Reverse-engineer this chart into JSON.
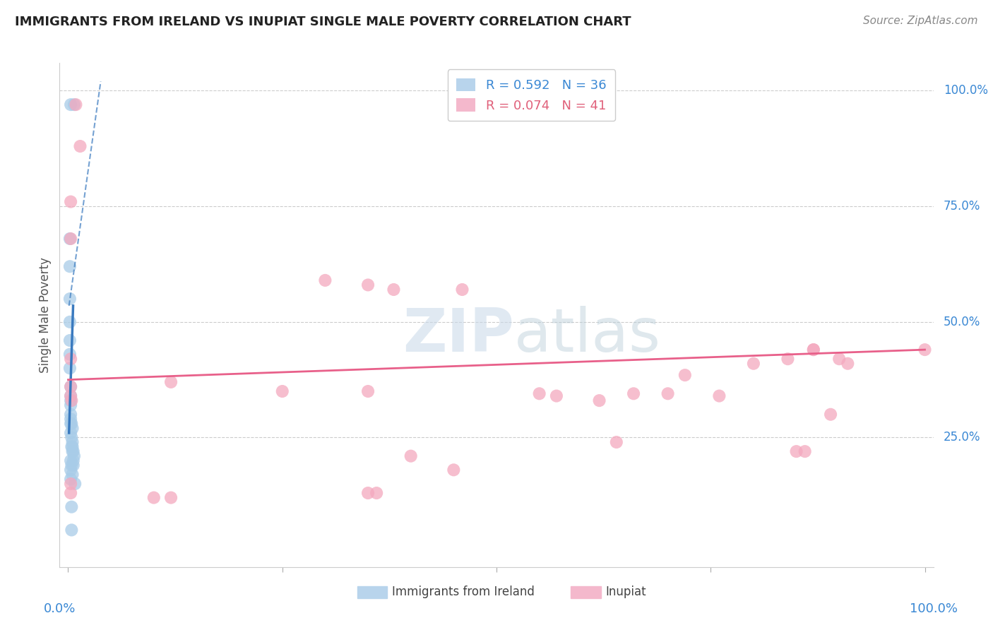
{
  "title": "IMMIGRANTS FROM IRELAND VS INUPIAT SINGLE MALE POVERTY CORRELATION CHART",
  "source": "Source: ZipAtlas.com",
  "ylabel": "Single Male Poverty",
  "blue_color": "#a8cce8",
  "pink_color": "#f4a8be",
  "blue_line_color": "#3a7abf",
  "pink_line_color": "#e8608a",
  "blue_points": [
    [
      0.003,
      0.97
    ],
    [
      0.007,
      0.97
    ],
    [
      0.002,
      0.68
    ],
    [
      0.002,
      0.62
    ],
    [
      0.002,
      0.55
    ],
    [
      0.002,
      0.5
    ],
    [
      0.002,
      0.46
    ],
    [
      0.002,
      0.43
    ],
    [
      0.002,
      0.4
    ],
    [
      0.003,
      0.36
    ],
    [
      0.003,
      0.34
    ],
    [
      0.003,
      0.33
    ],
    [
      0.003,
      0.32
    ],
    [
      0.003,
      0.3
    ],
    [
      0.003,
      0.29
    ],
    [
      0.003,
      0.28
    ],
    [
      0.004,
      0.28
    ],
    [
      0.005,
      0.27
    ],
    [
      0.003,
      0.26
    ],
    [
      0.004,
      0.25
    ],
    [
      0.005,
      0.24
    ],
    [
      0.004,
      0.23
    ],
    [
      0.005,
      0.23
    ],
    [
      0.005,
      0.22
    ],
    [
      0.006,
      0.22
    ],
    [
      0.007,
      0.21
    ],
    [
      0.003,
      0.2
    ],
    [
      0.006,
      0.2
    ],
    [
      0.004,
      0.19
    ],
    [
      0.006,
      0.19
    ],
    [
      0.003,
      0.18
    ],
    [
      0.005,
      0.17
    ],
    [
      0.003,
      0.16
    ],
    [
      0.008,
      0.15
    ],
    [
      0.004,
      0.1
    ],
    [
      0.004,
      0.05
    ]
  ],
  "pink_points": [
    [
      0.009,
      0.97
    ],
    [
      0.014,
      0.88
    ],
    [
      0.003,
      0.76
    ],
    [
      0.003,
      0.68
    ],
    [
      0.3,
      0.59
    ],
    [
      0.35,
      0.58
    ],
    [
      0.38,
      0.57
    ],
    [
      0.46,
      0.57
    ],
    [
      0.003,
      0.42
    ],
    [
      0.12,
      0.37
    ],
    [
      0.003,
      0.36
    ],
    [
      0.003,
      0.34
    ],
    [
      0.004,
      0.33
    ],
    [
      0.35,
      0.35
    ],
    [
      0.25,
      0.35
    ],
    [
      0.55,
      0.345
    ],
    [
      0.57,
      0.34
    ],
    [
      0.62,
      0.33
    ],
    [
      0.66,
      0.345
    ],
    [
      0.7,
      0.345
    ],
    [
      0.72,
      0.385
    ],
    [
      0.76,
      0.34
    ],
    [
      0.8,
      0.41
    ],
    [
      0.84,
      0.42
    ],
    [
      0.87,
      0.44
    ],
    [
      0.89,
      0.3
    ],
    [
      0.9,
      0.42
    ],
    [
      0.91,
      0.41
    ],
    [
      0.64,
      0.24
    ],
    [
      0.85,
      0.22
    ],
    [
      0.86,
      0.22
    ],
    [
      0.4,
      0.21
    ],
    [
      0.45,
      0.18
    ],
    [
      0.003,
      0.15
    ],
    [
      0.003,
      0.13
    ],
    [
      0.1,
      0.12
    ],
    [
      0.12,
      0.12
    ],
    [
      0.35,
      0.13
    ],
    [
      0.36,
      0.13
    ],
    [
      0.87,
      0.44
    ],
    [
      1.0,
      0.44
    ]
  ],
  "xlim": [
    0.0,
    1.0
  ],
  "ylim": [
    0.0,
    1.0
  ],
  "pink_trend": [
    0.0,
    1.0,
    0.375,
    0.44
  ],
  "blue_trend_solid": [
    0.001,
    0.0058,
    0.26,
    0.535
  ],
  "blue_trend_dash": [
    0.001,
    0.038,
    0.535,
    1.02
  ]
}
